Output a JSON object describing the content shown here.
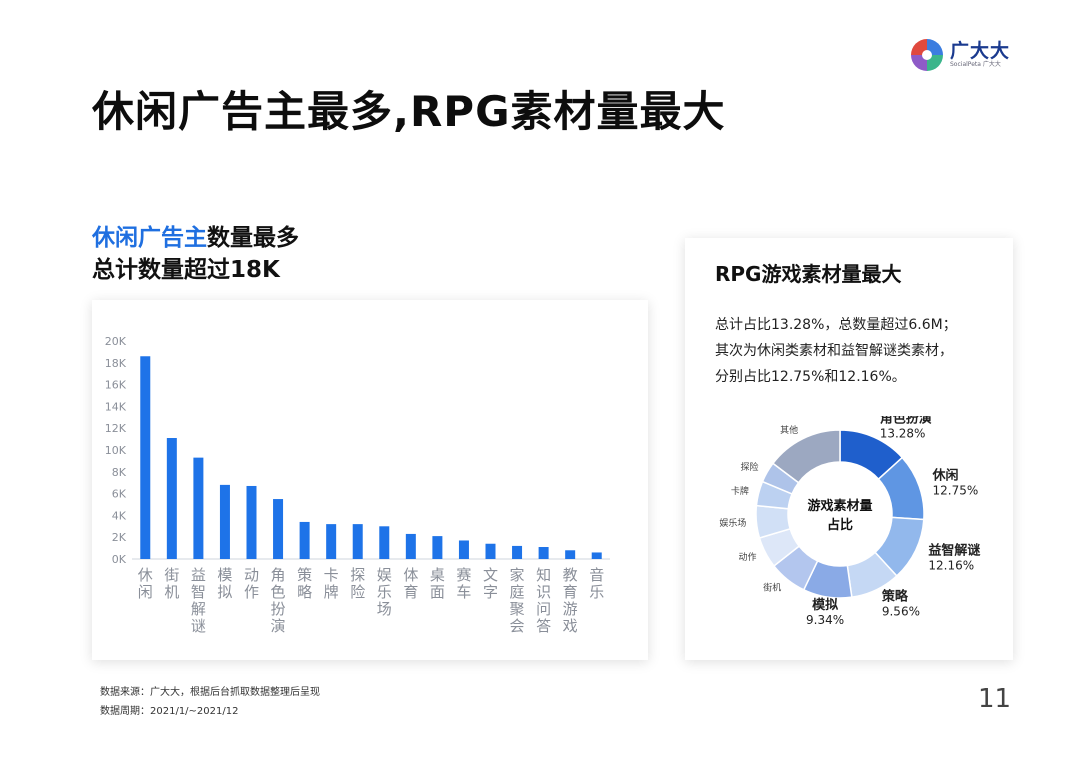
{
  "brand": {
    "name_cn": "广大大",
    "name_en": "SocialPeta 广大大",
    "colors": [
      "#3b7de0",
      "#e0493e",
      "#8e5bc7",
      "#3bb58b"
    ]
  },
  "page": {
    "title": "休闲广告主最多,RPG素材量最大",
    "number": "11"
  },
  "left": {
    "heading_highlight": "休闲广告主",
    "heading_rest": "数量最多",
    "heading_line2": "总计数量超过18K"
  },
  "right": {
    "title": "RPG游戏素材量最大",
    "desc": [
      "总计占比13.28%，总数量超过6.6M；",
      "其次为休闲类素材和益智解谜类素材，",
      "分别占比12.75%和12.16%。"
    ]
  },
  "footer": {
    "source": "数据来源：广大大，根据后台抓取数据整理后呈现",
    "period": "数据周期：2021/1/~2021/12"
  },
  "chart_data": [
    {
      "type": "bar",
      "color": "#1e73e8",
      "categories": [
        "休闲",
        "街机",
        "益智解谜",
        "模拟",
        "动作",
        "角色扮演",
        "策略",
        "卡牌",
        "探险",
        "娱乐场",
        "体育",
        "桌面",
        "赛车",
        "文字",
        "家庭聚会",
        "知识问答",
        "教育游戏",
        "音乐"
      ],
      "values": [
        18600,
        11100,
        9300,
        6800,
        6700,
        5500,
        3400,
        3200,
        3200,
        3000,
        2300,
        2100,
        1700,
        1400,
        1200,
        1100,
        800,
        600
      ],
      "yticks": [
        "0K",
        "2K",
        "4K",
        "6K",
        "8K",
        "10K",
        "12K",
        "14K",
        "16K",
        "18K",
        "20K"
      ],
      "ylim": [
        0,
        20000
      ],
      "grid": false
    },
    {
      "type": "pie",
      "center_label": [
        "游戏素材量",
        "占比"
      ],
      "slices": [
        {
          "label": "角色扮演",
          "pct": "13.28%",
          "value": 13.28,
          "color": "#1f5fcc"
        },
        {
          "label": "休闲",
          "pct": "12.75%",
          "value": 12.75,
          "color": "#5f96e3"
        },
        {
          "label": "益智解谜",
          "pct": "12.16%",
          "value": 12.16,
          "color": "#92b8ec"
        },
        {
          "label": "策略",
          "pct": "9.56%",
          "value": 9.56,
          "color": "#c5d8f4"
        },
        {
          "label": "模拟",
          "pct": "9.34%",
          "value": 9.34,
          "color": "#8aaae6"
        },
        {
          "label": "街机",
          "pct": "",
          "value": 7.3,
          "color": "#b3c6ee"
        },
        {
          "label": "动作",
          "pct": "",
          "value": 6.0,
          "color": "#dde7f8"
        },
        {
          "label": "娱乐场",
          "pct": "",
          "value": 6.2,
          "color": "#d1e0f6"
        },
        {
          "label": "卡牌",
          "pct": "",
          "value": 4.7,
          "color": "#bcd1f1"
        },
        {
          "label": "探险",
          "pct": "",
          "value": 4.0,
          "color": "#aec3e9"
        },
        {
          "label": "其他",
          "pct": "",
          "value": 14.7,
          "color": "#9ca8c1"
        }
      ]
    }
  ]
}
